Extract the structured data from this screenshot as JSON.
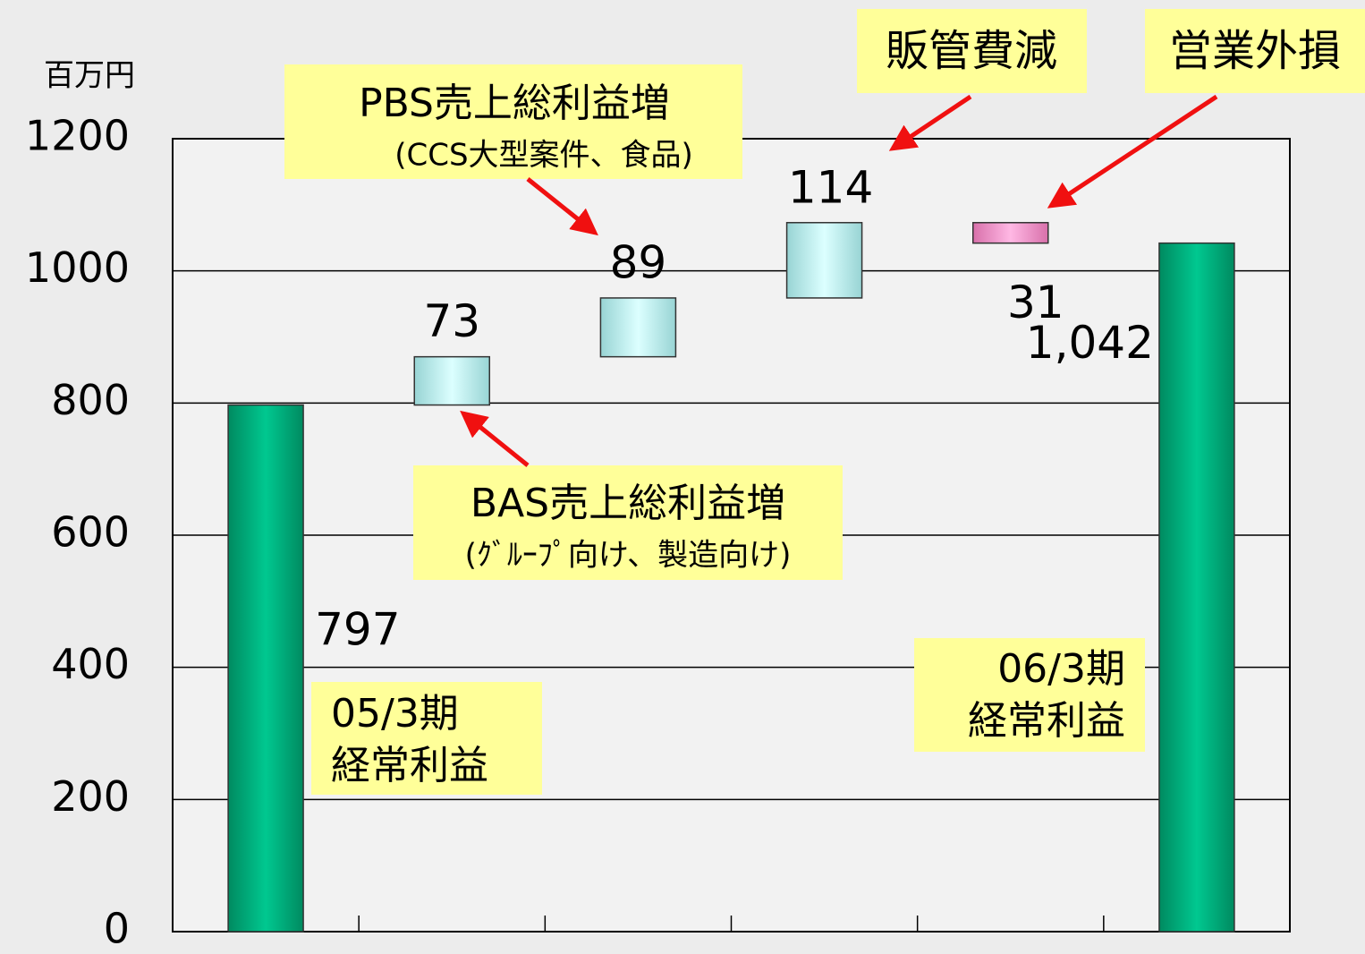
{
  "chart_data": {
    "type": "waterfall",
    "y_label": "百万円",
    "categories": [
      null,
      null,
      null,
      null,
      null,
      null
    ],
    "values": [
      797,
      73,
      89,
      114,
      -31,
      1042
    ],
    "value_labels": [
      "797",
      "73",
      "89",
      "114",
      "31",
      "1,042"
    ],
    "measure": [
      "absolute",
      "relative",
      "relative",
      "relative",
      "relative",
      "absolute"
    ],
    "colors": [
      "#00c08a",
      "#c8f4f4",
      "#c8f4f4",
      "#c8f4f4",
      "#f7a0d2",
      "#00c08a"
    ],
    "ylim": [
      0,
      1200
    ],
    "yticks": [
      0,
      200,
      400,
      600,
      800,
      1000,
      1200
    ],
    "grid": true,
    "annotations": [
      {
        "lines": [
          "PBS売上総利益増",
          "(CCS大型案件、食品)"
        ]
      },
      {
        "lines": [
          "BAS売上総利益増",
          "(ｸﾞﾙｰﾌﾟ向け、製造向け)"
        ]
      },
      {
        "lines": [
          "販管費減"
        ]
      },
      {
        "lines": [
          "営業外損"
        ]
      },
      {
        "lines": [
          "05/3期",
          "経常利益"
        ]
      },
      {
        "lines": [
          "06/3期",
          "経常利益"
        ]
      }
    ]
  }
}
